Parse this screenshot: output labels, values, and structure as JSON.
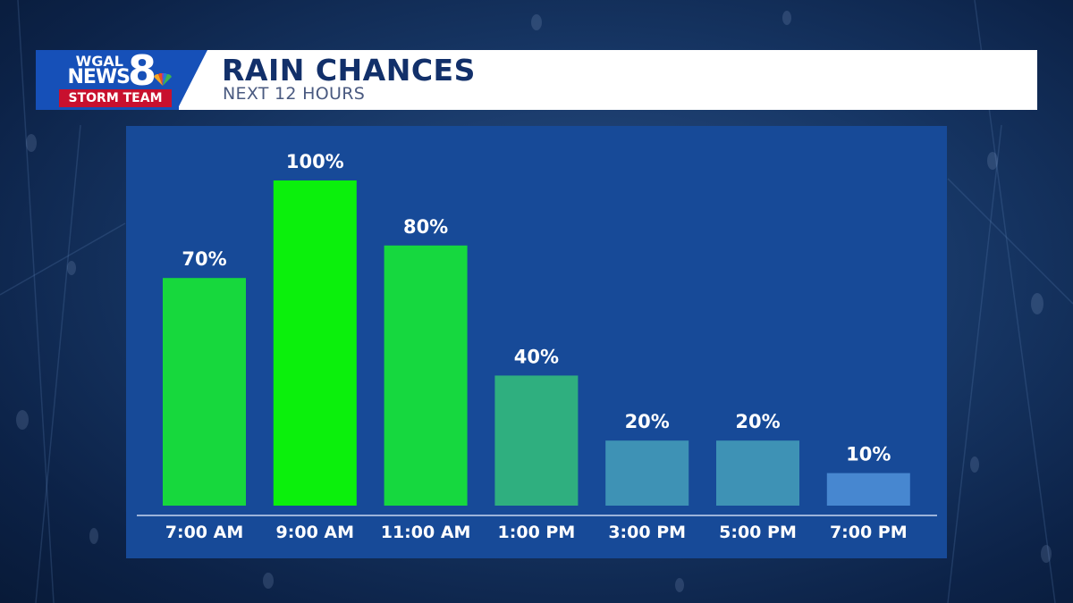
{
  "header": {
    "logo_line1": "WGAL",
    "logo_line2": "NEWS",
    "logo_number": "8",
    "logo_team": "STORM TEAM",
    "title": "RAIN CHANCES",
    "subtitle": "NEXT 12 HOURS"
  },
  "colors": {
    "header_blue": "#1650b8",
    "storm_red": "#c8102e",
    "panel": "#174a98"
  },
  "chart_data": {
    "type": "bar",
    "title": "RAIN CHANCES",
    "subtitle": "NEXT 12 HOURS",
    "categories": [
      "7:00 AM",
      "9:00 AM",
      "11:00 AM",
      "1:00 PM",
      "3:00 PM",
      "5:00 PM",
      "7:00 PM"
    ],
    "values": [
      70,
      100,
      80,
      40,
      20,
      20,
      10
    ],
    "value_labels": [
      "70%",
      "100%",
      "80%",
      "40%",
      "20%",
      "20%",
      "10%"
    ],
    "bar_colors": [
      "#17d83d",
      "#0bf00c",
      "#16d83f",
      "#2faf7f",
      "#3e92b5",
      "#3e92b5",
      "#4787d0"
    ],
    "ylim": [
      0,
      100
    ],
    "xlabel": "",
    "ylabel": "",
    "grid": false
  }
}
